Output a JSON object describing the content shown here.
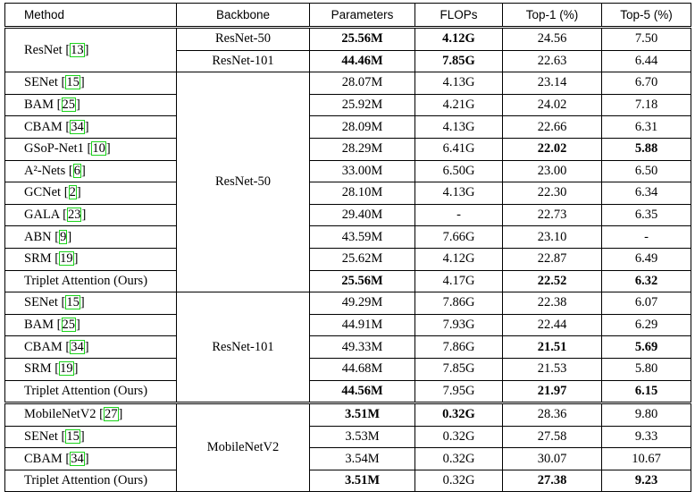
{
  "columns": [
    "Method",
    "Backbone",
    "Parameters",
    "FLOPs",
    "Top-1 (%)",
    "Top-5 (%)"
  ],
  "groups": [
    {
      "backbone": "",
      "rows": [
        {
          "name": "ResNet",
          "ref": "13",
          "backbone": "ResNet-50",
          "params": "25.56M",
          "flops": "4.12G",
          "top1": "24.56",
          "top5": "7.50",
          "bold": [
            "params",
            "flops"
          ]
        },
        {
          "name": "",
          "ref": "",
          "backbone": "ResNet-101",
          "params": "44.46M",
          "flops": "7.85G",
          "top1": "22.63",
          "top5": "6.44",
          "bold": [
            "params",
            "flops"
          ]
        }
      ]
    },
    {
      "backbone": "ResNet-50",
      "rows": [
        {
          "name": "SENet",
          "ref": "15",
          "params": "28.07M",
          "flops": "4.13G",
          "top1": "23.14",
          "top5": "6.70",
          "bold": []
        },
        {
          "name": "BAM",
          "ref": "25",
          "params": "25.92M",
          "flops": "4.21G",
          "top1": "24.02",
          "top5": "7.18",
          "bold": []
        },
        {
          "name": "CBAM",
          "ref": "34",
          "params": "28.09M",
          "flops": "4.13G",
          "top1": "22.66",
          "top5": "6.31",
          "bold": []
        },
        {
          "name": "GSoP-Net1",
          "ref": "10",
          "params": "28.29M",
          "flops": "6.41G",
          "top1": "22.02",
          "top5": "5.88",
          "bold": [
            "top1",
            "top5"
          ]
        },
        {
          "name": "A²-Nets",
          "ref": "6",
          "params": "33.00M",
          "flops": "6.50G",
          "top1": "23.00",
          "top5": "6.50",
          "bold": []
        },
        {
          "name": "GCNet",
          "ref": "2",
          "params": "28.10M",
          "flops": "4.13G",
          "top1": "22.30",
          "top5": "6.34",
          "bold": []
        },
        {
          "name": "GALA",
          "ref": "23",
          "params": "29.40M",
          "flops": "-",
          "top1": "22.73",
          "top5": "6.35",
          "bold": []
        },
        {
          "name": "ABN",
          "ref": "9",
          "params": "43.59M",
          "flops": "7.66G",
          "top1": "23.10",
          "top5": "-",
          "bold": []
        },
        {
          "name": "SRM",
          "ref": "19",
          "params": "25.62M",
          "flops": "4.12G",
          "top1": "22.87",
          "top5": "6.49",
          "bold": []
        },
        {
          "name": "Triplet Attention (Ours)",
          "ref": "",
          "params": "25.56M",
          "flops": "4.17G",
          "top1": "22.52",
          "top5": "6.32",
          "bold": [
            "params",
            "top1",
            "top5"
          ]
        }
      ]
    },
    {
      "backbone": "ResNet-101",
      "rows": [
        {
          "name": "SENet",
          "ref": "15",
          "params": "49.29M",
          "flops": "7.86G",
          "top1": "22.38",
          "top5": "6.07",
          "bold": []
        },
        {
          "name": "BAM",
          "ref": "25",
          "params": "44.91M",
          "flops": "7.93G",
          "top1": "22.44",
          "top5": "6.29",
          "bold": []
        },
        {
          "name": "CBAM",
          "ref": "34",
          "params": "49.33M",
          "flops": "7.86G",
          "top1": "21.51",
          "top5": "5.69",
          "bold": [
            "top1",
            "top5"
          ]
        },
        {
          "name": "SRM",
          "ref": "19",
          "params": "44.68M",
          "flops": "7.85G",
          "top1": "21.53",
          "top5": "5.80",
          "bold": []
        },
        {
          "name": "Triplet Attention (Ours)",
          "ref": "",
          "params": "44.56M",
          "flops": "7.95G",
          "top1": "21.97",
          "top5": "6.15",
          "bold": [
            "params",
            "top1",
            "top5"
          ]
        }
      ]
    },
    {
      "backbone": "MobileNetV2",
      "rows": [
        {
          "name": "MobileNetV2",
          "ref": "27",
          "params": "3.51M",
          "flops": "0.32G",
          "top1": "28.36",
          "top5": "9.80",
          "bold": [
            "params",
            "flops"
          ]
        },
        {
          "name": "SENet",
          "ref": "15",
          "params": "3.53M",
          "flops": "0.32G",
          "top1": "27.58",
          "top5": "9.33",
          "bold": []
        },
        {
          "name": "CBAM",
          "ref": "34",
          "params": "3.54M",
          "flops": "0.32G",
          "top1": "30.07",
          "top5": "10.67",
          "bold": []
        },
        {
          "name": "Triplet Attention (Ours)",
          "ref": "",
          "params": "3.51M",
          "flops": "0.32G",
          "top1": "27.38",
          "top5": "9.23",
          "bold": [
            "params",
            "top1",
            "top5"
          ]
        }
      ]
    }
  ]
}
